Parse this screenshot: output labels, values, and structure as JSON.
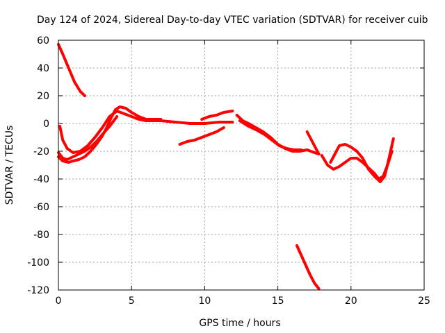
{
  "chart_data": {
    "type": "line",
    "title": "Day 124 of 2024, Sidereal Day-to-day VTEC variation (SDTVAR) for receiver cuib",
    "xlabel": "GPS time / hours",
    "ylabel": "SDTVAR / TECUs",
    "xlim": [
      0,
      25
    ],
    "ylim": [
      -120,
      60
    ],
    "xticks": [
      0,
      5,
      10,
      15,
      20,
      25
    ],
    "yticks": [
      -120,
      -100,
      -80,
      -60,
      -40,
      -20,
      0,
      20,
      40,
      60
    ],
    "grid": true,
    "color": "#ff0000",
    "series": [
      {
        "name": "trace-1",
        "x": [
          0.0,
          0.3,
          0.7,
          1.1,
          1.5,
          1.8
        ],
        "y": [
          57,
          50,
          40,
          30,
          23,
          20
        ]
      },
      {
        "name": "trace-2",
        "x": [
          0.1,
          0.3,
          0.6,
          1.0,
          1.5,
          2.0,
          2.5,
          3.0,
          3.5,
          4.0,
          4.5,
          5.0,
          5.5,
          6.0,
          7.0,
          8.0,
          9.0,
          10.0,
          11.0,
          11.9
        ],
        "y": [
          -2,
          -12,
          -18,
          -21,
          -20,
          -16,
          -10,
          -3,
          5,
          9,
          7,
          5,
          3,
          2,
          2,
          1,
          0,
          0,
          1,
          1
        ]
      },
      {
        "name": "trace-3",
        "x": [
          0.0,
          0.3,
          0.7,
          1.0,
          1.4,
          1.8,
          2.2,
          2.6,
          3.0,
          3.3,
          3.6,
          3.9,
          4.2,
          4.6,
          5.0,
          5.5,
          6.0,
          6.5,
          7.0
        ],
        "y": [
          -24,
          -27,
          -28,
          -27,
          -26,
          -24,
          -20,
          -15,
          -9,
          -3,
          4,
          10,
          12,
          11,
          8,
          5,
          3,
          3,
          3
        ]
      },
      {
        "name": "trace-4",
        "x": [
          0.0,
          0.3,
          0.6,
          1.0,
          1.4,
          1.8,
          2.2,
          2.6,
          3.0,
          3.5,
          4.0
        ],
        "y": [
          -21,
          -25,
          -26,
          -24,
          -22,
          -20,
          -17,
          -13,
          -8,
          -2,
          5
        ]
      },
      {
        "name": "trace-5",
        "x": [
          8.3,
          8.8,
          9.3,
          9.8,
          10.3,
          10.8,
          11.3
        ],
        "y": [
          -15,
          -13,
          -12,
          -10,
          -8,
          -6,
          -3
        ]
      },
      {
        "name": "trace-6",
        "x": [
          9.8,
          10.3,
          10.8,
          11.3,
          11.9
        ],
        "y": [
          3,
          5,
          6,
          8,
          9
        ]
      },
      {
        "name": "trace-7",
        "x": [
          12.2,
          12.6,
          13.0,
          13.5,
          14.0,
          14.5,
          15.0,
          15.5,
          16.0,
          16.5,
          17.0,
          17.5,
          17.8
        ],
        "y": [
          6,
          2,
          0,
          -3,
          -6,
          -10,
          -15,
          -18,
          -20,
          -20,
          -19,
          -21,
          -22
        ]
      },
      {
        "name": "trace-8",
        "x": [
          12.4,
          13.0,
          13.6,
          14.1,
          14.6,
          15.1,
          15.6,
          16.1,
          16.6
        ],
        "y": [
          2,
          -2,
          -5,
          -8,
          -12,
          -16,
          -18,
          -19,
          -19
        ]
      },
      {
        "name": "trace-9",
        "x": [
          17.0,
          17.3,
          17.6,
          17.8
        ],
        "y": [
          -6,
          -12,
          -18,
          -22
        ]
      },
      {
        "name": "trace-10",
        "x": [
          18.0,
          18.4,
          18.8,
          19.2,
          19.6,
          20.0,
          20.4,
          20.8,
          21.2,
          21.6,
          21.9,
          22.2,
          22.5,
          22.8
        ],
        "y": [
          -23,
          -30,
          -33,
          -31,
          -28,
          -25,
          -25,
          -28,
          -32,
          -36,
          -40,
          -38,
          -30,
          -20
        ]
      },
      {
        "name": "trace-11",
        "x": [
          18.6,
          18.9,
          19.2,
          19.6,
          20.0,
          20.4,
          20.8,
          21.2,
          21.6,
          22.0,
          22.3,
          22.6,
          22.9
        ],
        "y": [
          -28,
          -22,
          -16,
          -15,
          -17,
          -20,
          -25,
          -33,
          -38,
          -42,
          -38,
          -25,
          -11
        ]
      },
      {
        "name": "trace-12",
        "x": [
          16.3,
          16.6,
          16.9,
          17.2,
          17.5,
          17.8
        ],
        "y": [
          -88,
          -95,
          -102,
          -109,
          -115,
          -119
        ]
      }
    ]
  }
}
